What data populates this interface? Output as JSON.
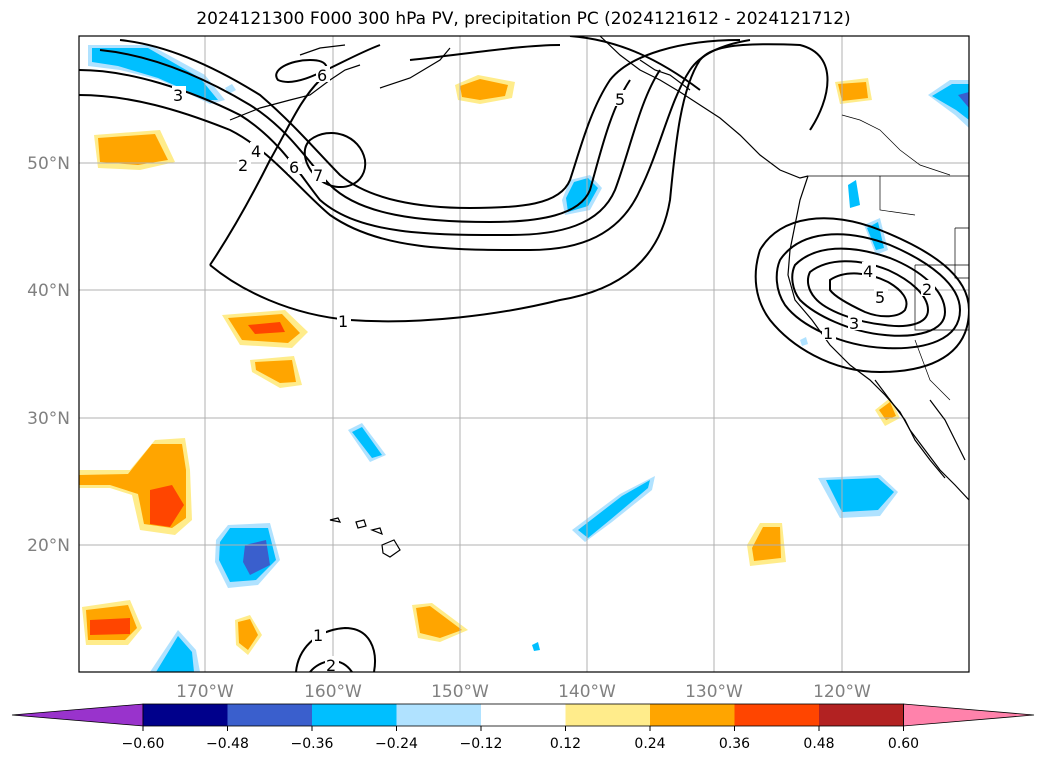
{
  "title": "2024121300 F000 300 hPa PV, precipitation PC (2024121612 - 2024121712)",
  "map": {
    "lat_labels": [
      "50°N",
      "40°N",
      "30°N",
      "20°N"
    ],
    "lon_labels": [
      "170°W",
      "160°W",
      "150°W",
      "140°W",
      "130°W",
      "120°W"
    ],
    "contour_labels": [
      "3",
      "2",
      "4",
      "6",
      "7",
      "6",
      "5",
      "1",
      "2",
      "4",
      "5",
      "2",
      "3",
      "1",
      "1",
      "2"
    ]
  },
  "colorbar": {
    "ticks": [
      "−0.60",
      "−0.48",
      "−0.36",
      "−0.24",
      "−0.12",
      "0.12",
      "0.24",
      "0.36",
      "0.48",
      "0.60"
    ],
    "colors": [
      "#9933cc",
      "#00008b",
      "#3a5fcd",
      "#00bfff",
      "#b0e2ff",
      "#ffffff",
      "#ffec8b",
      "#ffa500",
      "#ff4500",
      "#b22222",
      "#ff82ab"
    ]
  },
  "colors": {
    "neg_strong": "#3a5fcd",
    "neg_mid": "#00bfff",
    "neg_weak": "#b0e2ff",
    "pos_weak": "#ffec8b",
    "pos_mid": "#ffa500",
    "pos_strong": "#ff4500"
  }
}
